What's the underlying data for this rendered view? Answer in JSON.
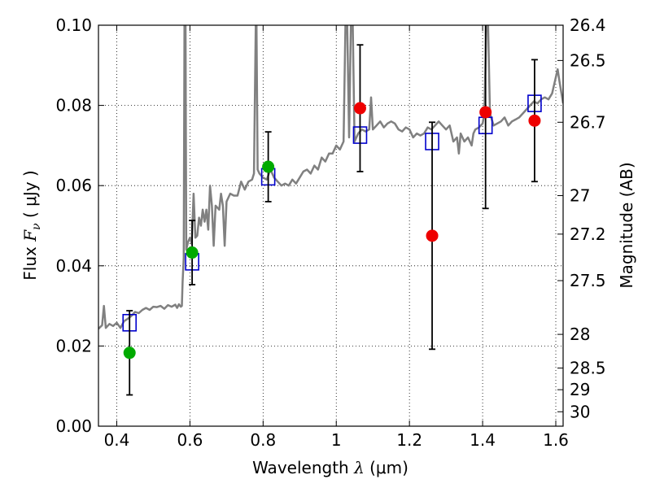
{
  "chart_data": {
    "type": "scatter",
    "xlabel": {
      "prefix": "Wavelength",
      "symbol": "λ",
      "unit": "(μm)"
    },
    "ylabel": {
      "prefix": "Flux",
      "symbol": "F",
      "subscript": "ν",
      "unit": "( μJy )"
    },
    "ylabel_right": "Magnitude (AB)",
    "xlim": [
      0.35,
      1.62
    ],
    "ylim": [
      0.0,
      0.1
    ],
    "x_ticks": [
      {
        "value": 0.4,
        "label": "0.4"
      },
      {
        "value": 0.6,
        "label": "0.6"
      },
      {
        "value": 0.8,
        "label": "0.8"
      },
      {
        "value": 1.0,
        "label": "1"
      },
      {
        "value": 1.2,
        "label": "1.2"
      },
      {
        "value": 1.4,
        "label": "1.4"
      },
      {
        "value": 1.6,
        "label": "1.6"
      }
    ],
    "y_ticks": [
      {
        "value": 0.0,
        "label": "0.00"
      },
      {
        "value": 0.02,
        "label": "0.02"
      },
      {
        "value": 0.04,
        "label": "0.04"
      },
      {
        "value": 0.06,
        "label": "0.06"
      },
      {
        "value": 0.08,
        "label": "0.08"
      },
      {
        "value": 0.1,
        "label": "0.10"
      }
    ],
    "right_ticks": [
      {
        "flux": 0.1,
        "label": "26.4"
      },
      {
        "flux": 0.0912,
        "label": "26.5"
      },
      {
        "flux": 0.0758,
        "label": "26.7"
      },
      {
        "flux": 0.0575,
        "label": "27"
      },
      {
        "flux": 0.0479,
        "label": "27.2"
      },
      {
        "flux": 0.0363,
        "label": "27.5"
      },
      {
        "flux": 0.0229,
        "label": "28"
      },
      {
        "flux": 0.0145,
        "label": "28.5"
      },
      {
        "flux": 0.0091,
        "label": "29"
      },
      {
        "flux": 0.0036,
        "label": "30"
      }
    ],
    "grid": true,
    "colors": {
      "model": "#808080",
      "bands": "#0000cc",
      "green": "#00aa00",
      "red": "#ee0000",
      "errorbar": "#000000"
    },
    "model_spectrum": [
      [
        0.35,
        0.0243
      ],
      [
        0.36,
        0.0252
      ],
      [
        0.365,
        0.03
      ],
      [
        0.37,
        0.0245
      ],
      [
        0.38,
        0.0255
      ],
      [
        0.39,
        0.025
      ],
      [
        0.4,
        0.0258
      ],
      [
        0.41,
        0.0245
      ],
      [
        0.42,
        0.0262
      ],
      [
        0.43,
        0.0268
      ],
      [
        0.44,
        0.0275
      ],
      [
        0.45,
        0.0285
      ],
      [
        0.46,
        0.0282
      ],
      [
        0.47,
        0.029
      ],
      [
        0.48,
        0.0295
      ],
      [
        0.49,
        0.029
      ],
      [
        0.5,
        0.0298
      ],
      [
        0.51,
        0.0297
      ],
      [
        0.52,
        0.03
      ],
      [
        0.53,
        0.0293
      ],
      [
        0.54,
        0.0302
      ],
      [
        0.55,
        0.0298
      ],
      [
        0.56,
        0.0303
      ],
      [
        0.565,
        0.0295
      ],
      [
        0.57,
        0.0304
      ],
      [
        0.575,
        0.0298
      ],
      [
        0.578,
        0.03
      ],
      [
        0.58,
        0.036
      ],
      [
        0.583,
        0.042
      ],
      [
        0.585,
        0.1
      ],
      [
        0.588,
        0.1
      ],
      [
        0.59,
        0.044
      ],
      [
        0.595,
        0.046
      ],
      [
        0.6,
        0.047
      ],
      [
        0.605,
        0.0455
      ],
      [
        0.61,
        0.058
      ],
      [
        0.615,
        0.047
      ],
      [
        0.62,
        0.0475
      ],
      [
        0.625,
        0.052
      ],
      [
        0.63,
        0.05
      ],
      [
        0.635,
        0.054
      ],
      [
        0.64,
        0.051
      ],
      [
        0.645,
        0.054
      ],
      [
        0.65,
        0.049
      ],
      [
        0.655,
        0.06
      ],
      [
        0.66,
        0.055
      ],
      [
        0.665,
        0.045
      ],
      [
        0.67,
        0.055
      ],
      [
        0.68,
        0.054
      ],
      [
        0.685,
        0.058
      ],
      [
        0.69,
        0.055
      ],
      [
        0.695,
        0.045
      ],
      [
        0.7,
        0.056
      ],
      [
        0.71,
        0.058
      ],
      [
        0.72,
        0.0575
      ],
      [
        0.73,
        0.0575
      ],
      [
        0.74,
        0.061
      ],
      [
        0.75,
        0.059
      ],
      [
        0.76,
        0.061
      ],
      [
        0.77,
        0.0615
      ],
      [
        0.775,
        0.063
      ],
      [
        0.78,
        0.1
      ],
      [
        0.782,
        0.1
      ],
      [
        0.785,
        0.064
      ],
      [
        0.79,
        0.063
      ],
      [
        0.8,
        0.062
      ],
      [
        0.81,
        0.0615
      ],
      [
        0.82,
        0.064
      ],
      [
        0.83,
        0.062
      ],
      [
        0.84,
        0.061
      ],
      [
        0.85,
        0.06
      ],
      [
        0.86,
        0.0605
      ],
      [
        0.87,
        0.06
      ],
      [
        0.88,
        0.0615
      ],
      [
        0.89,
        0.0605
      ],
      [
        0.9,
        0.062
      ],
      [
        0.91,
        0.0635
      ],
      [
        0.92,
        0.064
      ],
      [
        0.93,
        0.063
      ],
      [
        0.94,
        0.065
      ],
      [
        0.95,
        0.064
      ],
      [
        0.96,
        0.067
      ],
      [
        0.97,
        0.066
      ],
      [
        0.98,
        0.068
      ],
      [
        0.99,
        0.068
      ],
      [
        1.0,
        0.07
      ],
      [
        1.01,
        0.069
      ],
      [
        1.02,
        0.071
      ],
      [
        1.025,
        0.1
      ],
      [
        1.03,
        0.1
      ],
      [
        1.035,
        0.072
      ],
      [
        1.04,
        0.1
      ],
      [
        1.045,
        0.1
      ],
      [
        1.05,
        0.071
      ],
      [
        1.06,
        0.073
      ],
      [
        1.07,
        0.074
      ],
      [
        1.08,
        0.0735
      ],
      [
        1.09,
        0.074
      ],
      [
        1.095,
        0.082
      ],
      [
        1.1,
        0.074
      ],
      [
        1.11,
        0.075
      ],
      [
        1.12,
        0.076
      ],
      [
        1.13,
        0.0745
      ],
      [
        1.14,
        0.0755
      ],
      [
        1.15,
        0.076
      ],
      [
        1.16,
        0.0755
      ],
      [
        1.17,
        0.074
      ],
      [
        1.18,
        0.0735
      ],
      [
        1.19,
        0.0745
      ],
      [
        1.2,
        0.074
      ],
      [
        1.21,
        0.072
      ],
      [
        1.22,
        0.073
      ],
      [
        1.23,
        0.0725
      ],
      [
        1.24,
        0.073
      ],
      [
        1.25,
        0.0745
      ],
      [
        1.26,
        0.074
      ],
      [
        1.27,
        0.075
      ],
      [
        1.28,
        0.076
      ],
      [
        1.29,
        0.075
      ],
      [
        1.3,
        0.074
      ],
      [
        1.31,
        0.075
      ],
      [
        1.32,
        0.071
      ],
      [
        1.33,
        0.072
      ],
      [
        1.335,
        0.068
      ],
      [
        1.34,
        0.073
      ],
      [
        1.35,
        0.071
      ],
      [
        1.36,
        0.072
      ],
      [
        1.37,
        0.07
      ],
      [
        1.375,
        0.073
      ],
      [
        1.38,
        0.074
      ],
      [
        1.39,
        0.0745
      ],
      [
        1.4,
        0.0755
      ],
      [
        1.405,
        0.078
      ],
      [
        1.41,
        0.1
      ],
      [
        1.415,
        0.1
      ],
      [
        1.42,
        0.078
      ],
      [
        1.43,
        0.075
      ],
      [
        1.44,
        0.0755
      ],
      [
        1.45,
        0.076
      ],
      [
        1.46,
        0.077
      ],
      [
        1.47,
        0.075
      ],
      [
        1.48,
        0.076
      ],
      [
        1.49,
        0.0765
      ],
      [
        1.5,
        0.077
      ],
      [
        1.51,
        0.078
      ],
      [
        1.52,
        0.079
      ],
      [
        1.53,
        0.08
      ],
      [
        1.54,
        0.081
      ],
      [
        1.55,
        0.0805
      ],
      [
        1.56,
        0.0815
      ],
      [
        1.57,
        0.082
      ],
      [
        1.58,
        0.0815
      ],
      [
        1.59,
        0.083
      ],
      [
        1.6,
        0.087
      ],
      [
        1.605,
        0.089
      ],
      [
        1.61,
        0.086
      ],
      [
        1.62,
        0.0805
      ]
    ],
    "band_fluxes": [
      {
        "x": 0.435,
        "y": 0.0258
      },
      {
        "x": 0.606,
        "y": 0.041
      },
      {
        "x": 0.814,
        "y": 0.0622
      },
      {
        "x": 1.065,
        "y": 0.0726
      },
      {
        "x": 1.262,
        "y": 0.071
      },
      {
        "x": 1.408,
        "y": 0.075
      },
      {
        "x": 1.542,
        "y": 0.0805
      }
    ],
    "observed_green": [
      {
        "x": 0.435,
        "y": 0.0183,
        "err": 0.0105
      },
      {
        "x": 0.606,
        "y": 0.0433,
        "err": 0.008
      },
      {
        "x": 0.814,
        "y": 0.0647,
        "err": 0.0087
      }
    ],
    "observed_red": [
      {
        "x": 1.065,
        "y": 0.0793,
        "err": 0.0158
      },
      {
        "x": 1.262,
        "y": 0.0475,
        "err": 0.0283
      },
      {
        "x": 1.408,
        "y": 0.0783,
        "err": 0.024
      },
      {
        "x": 1.542,
        "y": 0.0762,
        "err": 0.0152
      }
    ]
  }
}
